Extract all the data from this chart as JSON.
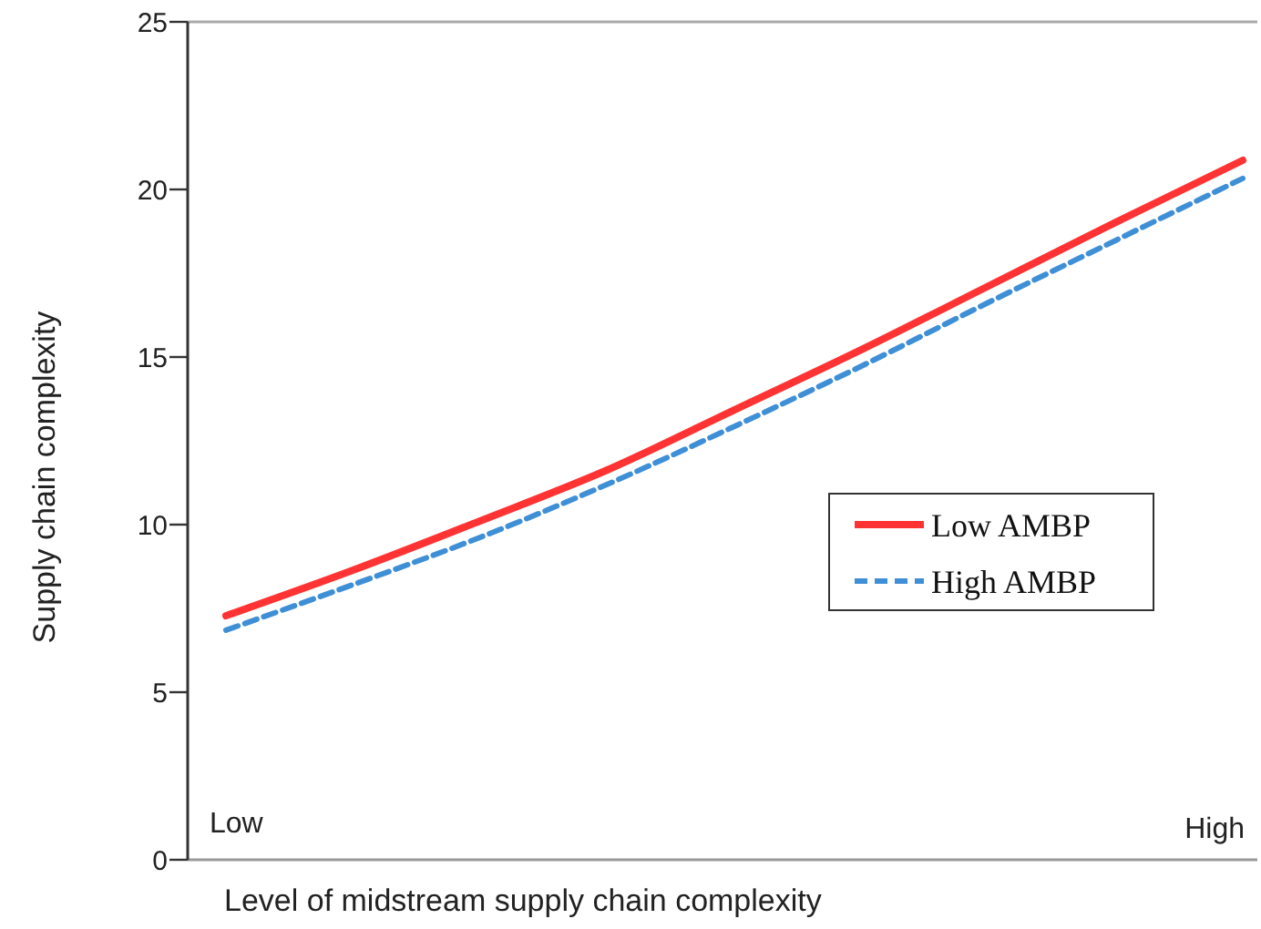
{
  "chart_data": {
    "type": "line",
    "xlabel": "Level of midstream supply chain complexity",
    "ylabel": "Supply chain complexity",
    "categories": [
      null,
      null,
      null,
      null,
      null,
      null,
      null,
      null,
      null
    ],
    "series": [
      {
        "name": "Low AMBP",
        "color": "#ff3333",
        "line_style": "solid",
        "values": [
          7.28,
          8.64,
          10.11,
          11.63,
          13.42,
          15.22,
          17.12,
          19.02,
          20.87
        ]
      },
      {
        "name": "High AMBP",
        "color": "#3f8fd6",
        "line_style": "dashed",
        "values": [
          6.85,
          8.21,
          9.62,
          11.2,
          12.93,
          14.73,
          16.63,
          18.48,
          20.33
        ]
      }
    ],
    "annotations": [
      "Low",
      "High"
    ],
    "ylim": [
      0,
      25
    ],
    "yticks": [
      0,
      5,
      10,
      15,
      20,
      25
    ],
    "legend": "right",
    "grid": false
  }
}
